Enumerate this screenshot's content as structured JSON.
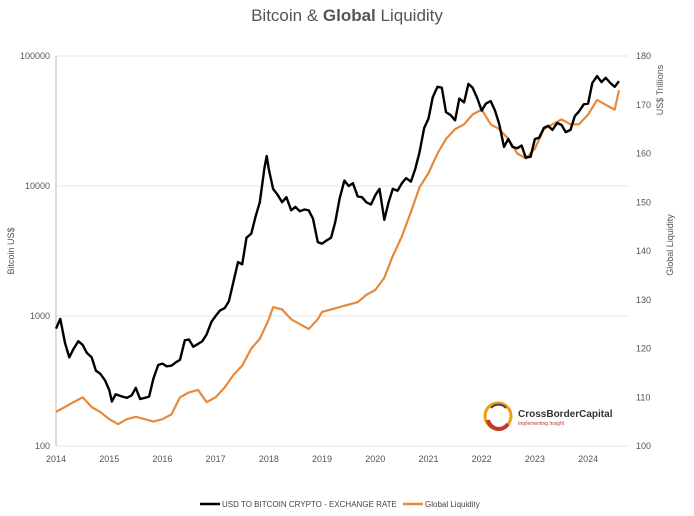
{
  "title": {
    "part1": "Bitcoin & ",
    "bold": "Global",
    "part2": " Liquidity"
  },
  "logo": {
    "name": "CrossBorderCapital",
    "tagline": "Implementing Insight"
  },
  "colors": {
    "bitcoin": "#000000",
    "liquidity": "#e8893a",
    "grid": "#e6e6e6"
  },
  "chart_data": {
    "type": "line",
    "title": "Bitcoin & Global Liquidity",
    "x_ticks": [
      "2014",
      "2015",
      "2016",
      "2017",
      "2018",
      "2019",
      "2020",
      "2021",
      "2022",
      "2023",
      "2024"
    ],
    "xlim": [
      2014.0,
      2024.75
    ],
    "y_left": {
      "label": "Bitcoin US$",
      "scale": "log",
      "range": [
        100,
        100000
      ],
      "ticks": [
        "100",
        "1000",
        "10000",
        "100000"
      ]
    },
    "y_right": {
      "label": "Global Liquidity",
      "unit_label": "US$ Trillions",
      "range": [
        100,
        180
      ],
      "ticks": [
        "100",
        "110",
        "120",
        "130",
        "140",
        "150",
        "160",
        "170",
        "180"
      ]
    },
    "series": [
      {
        "name": "USD TO BITCOIN CRYPTO - EXCHANGE RATE",
        "axis": "left",
        "points": [
          [
            2014.0,
            800
          ],
          [
            2014.08,
            950
          ],
          [
            2014.17,
            620
          ],
          [
            2014.25,
            480
          ],
          [
            2014.33,
            560
          ],
          [
            2014.42,
            640
          ],
          [
            2014.5,
            600
          ],
          [
            2014.58,
            520
          ],
          [
            2014.67,
            480
          ],
          [
            2014.75,
            380
          ],
          [
            2014.83,
            360
          ],
          [
            2014.92,
            320
          ],
          [
            2015.0,
            270
          ],
          [
            2015.05,
            220
          ],
          [
            2015.12,
            250
          ],
          [
            2015.25,
            240
          ],
          [
            2015.33,
            235
          ],
          [
            2015.42,
            245
          ],
          [
            2015.5,
            280
          ],
          [
            2015.58,
            230
          ],
          [
            2015.67,
            235
          ],
          [
            2015.75,
            240
          ],
          [
            2015.83,
            330
          ],
          [
            2015.92,
            420
          ],
          [
            2016.0,
            430
          ],
          [
            2016.08,
            410
          ],
          [
            2016.17,
            415
          ],
          [
            2016.25,
            440
          ],
          [
            2016.33,
            460
          ],
          [
            2016.42,
            650
          ],
          [
            2016.5,
            660
          ],
          [
            2016.58,
            580
          ],
          [
            2016.67,
            610
          ],
          [
            2016.75,
            640
          ],
          [
            2016.83,
            720
          ],
          [
            2016.92,
            900
          ],
          [
            2017.0,
            1000
          ],
          [
            2017.08,
            1100
          ],
          [
            2017.17,
            1150
          ],
          [
            2017.25,
            1300
          ],
          [
            2017.33,
            1800
          ],
          [
            2017.42,
            2600
          ],
          [
            2017.5,
            2500
          ],
          [
            2017.58,
            4000
          ],
          [
            2017.67,
            4300
          ],
          [
            2017.75,
            5800
          ],
          [
            2017.83,
            7500
          ],
          [
            2017.92,
            14000
          ],
          [
            2017.96,
            17000
          ],
          [
            2018.0,
            13500
          ],
          [
            2018.08,
            9500
          ],
          [
            2018.17,
            8500
          ],
          [
            2018.25,
            7500
          ],
          [
            2018.33,
            8200
          ],
          [
            2018.42,
            6500
          ],
          [
            2018.5,
            6900
          ],
          [
            2018.58,
            6400
          ],
          [
            2018.67,
            6600
          ],
          [
            2018.75,
            6500
          ],
          [
            2018.83,
            5600
          ],
          [
            2018.92,
            3700
          ],
          [
            2019.0,
            3600
          ],
          [
            2019.08,
            3800
          ],
          [
            2019.17,
            4000
          ],
          [
            2019.25,
            5300
          ],
          [
            2019.33,
            8000
          ],
          [
            2019.42,
            11000
          ],
          [
            2019.5,
            10000
          ],
          [
            2019.58,
            10500
          ],
          [
            2019.67,
            8300
          ],
          [
            2019.75,
            8200
          ],
          [
            2019.83,
            7500
          ],
          [
            2019.92,
            7200
          ],
          [
            2020.0,
            8500
          ],
          [
            2020.08,
            9500
          ],
          [
            2020.17,
            5500
          ],
          [
            2020.25,
            7500
          ],
          [
            2020.33,
            9500
          ],
          [
            2020.42,
            9200
          ],
          [
            2020.5,
            10500
          ],
          [
            2020.58,
            11500
          ],
          [
            2020.67,
            10800
          ],
          [
            2020.75,
            13500
          ],
          [
            2020.83,
            18000
          ],
          [
            2020.92,
            28000
          ],
          [
            2021.0,
            33000
          ],
          [
            2021.08,
            48000
          ],
          [
            2021.17,
            58000
          ],
          [
            2021.25,
            57000
          ],
          [
            2021.33,
            37000
          ],
          [
            2021.42,
            35000
          ],
          [
            2021.5,
            32000
          ],
          [
            2021.58,
            47000
          ],
          [
            2021.67,
            44000
          ],
          [
            2021.75,
            61000
          ],
          [
            2021.83,
            57000
          ],
          [
            2021.92,
            47000
          ],
          [
            2022.0,
            38000
          ],
          [
            2022.08,
            43000
          ],
          [
            2022.17,
            45000
          ],
          [
            2022.25,
            38000
          ],
          [
            2022.33,
            30000
          ],
          [
            2022.42,
            20000
          ],
          [
            2022.5,
            23000
          ],
          [
            2022.58,
            20000
          ],
          [
            2022.67,
            19500
          ],
          [
            2022.75,
            20500
          ],
          [
            2022.83,
            16500
          ],
          [
            2022.92,
            16800
          ],
          [
            2023.0,
            23000
          ],
          [
            2023.08,
            23500
          ],
          [
            2023.17,
            28000
          ],
          [
            2023.25,
            29000
          ],
          [
            2023.33,
            27000
          ],
          [
            2023.42,
            30500
          ],
          [
            2023.5,
            29500
          ],
          [
            2023.58,
            26000
          ],
          [
            2023.67,
            27000
          ],
          [
            2023.75,
            34500
          ],
          [
            2023.83,
            37500
          ],
          [
            2023.92,
            42500
          ],
          [
            2024.0,
            43000
          ],
          [
            2024.08,
            62000
          ],
          [
            2024.17,
            70000
          ],
          [
            2024.25,
            63000
          ],
          [
            2024.33,
            68000
          ],
          [
            2024.42,
            62000
          ],
          [
            2024.5,
            58000
          ],
          [
            2024.58,
            64000
          ]
        ]
      },
      {
        "name": "Global Liquidity",
        "axis": "right",
        "points": [
          [
            2014.0,
            107
          ],
          [
            2014.17,
            108
          ],
          [
            2014.33,
            109
          ],
          [
            2014.5,
            110
          ],
          [
            2014.67,
            108
          ],
          [
            2014.83,
            107
          ],
          [
            2015.0,
            105.5
          ],
          [
            2015.17,
            104.5
          ],
          [
            2015.33,
            105.5
          ],
          [
            2015.5,
            106
          ],
          [
            2015.67,
            105.5
          ],
          [
            2015.83,
            105
          ],
          [
            2016.0,
            105.5
          ],
          [
            2016.17,
            106.5
          ],
          [
            2016.33,
            110
          ],
          [
            2016.5,
            111
          ],
          [
            2016.67,
            111.5
          ],
          [
            2016.83,
            109
          ],
          [
            2017.0,
            110
          ],
          [
            2017.17,
            112
          ],
          [
            2017.33,
            114.5
          ],
          [
            2017.5,
            116.5
          ],
          [
            2017.67,
            120
          ],
          [
            2017.83,
            122
          ],
          [
            2018.0,
            126
          ],
          [
            2018.08,
            128.5
          ],
          [
            2018.25,
            128
          ],
          [
            2018.42,
            126
          ],
          [
            2018.58,
            125
          ],
          [
            2018.75,
            124
          ],
          [
            2018.92,
            126
          ],
          [
            2019.0,
            127.5
          ],
          [
            2019.17,
            128
          ],
          [
            2019.33,
            128.5
          ],
          [
            2019.5,
            129
          ],
          [
            2019.67,
            129.5
          ],
          [
            2019.83,
            131
          ],
          [
            2020.0,
            132
          ],
          [
            2020.17,
            134.5
          ],
          [
            2020.33,
            139
          ],
          [
            2020.5,
            143
          ],
          [
            2020.67,
            148
          ],
          [
            2020.83,
            153
          ],
          [
            2021.0,
            156
          ],
          [
            2021.17,
            160
          ],
          [
            2021.33,
            163
          ],
          [
            2021.5,
            165
          ],
          [
            2021.67,
            166
          ],
          [
            2021.83,
            168
          ],
          [
            2022.0,
            169
          ],
          [
            2022.17,
            166
          ],
          [
            2022.33,
            165
          ],
          [
            2022.5,
            163
          ],
          [
            2022.67,
            160
          ],
          [
            2022.83,
            159
          ],
          [
            2023.0,
            161
          ],
          [
            2023.17,
            165
          ],
          [
            2023.33,
            166
          ],
          [
            2023.5,
            167
          ],
          [
            2023.67,
            166
          ],
          [
            2023.83,
            166
          ],
          [
            2024.0,
            168
          ],
          [
            2024.17,
            171
          ],
          [
            2024.33,
            170
          ],
          [
            2024.5,
            169
          ],
          [
            2024.58,
            173
          ]
        ]
      }
    ]
  }
}
